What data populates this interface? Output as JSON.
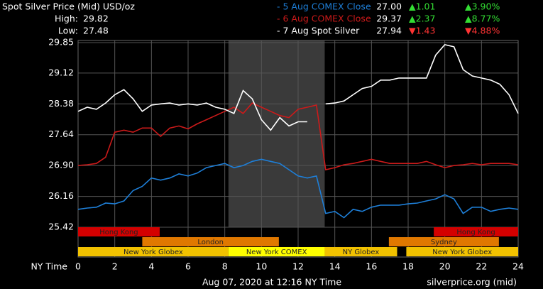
{
  "chart_data": {
    "type": "line",
    "title": "Spot Silver Price (Mid) USD/oz",
    "high_label": "High:",
    "high": "29.82",
    "low_label": "Low:",
    "low": "27.48",
    "x_label": "NY Time",
    "footer_left": "Aug 07, 2020 at 12:16 NY Time",
    "footer_right": "silverprice.org (mid)",
    "xlim": [
      0,
      24
    ],
    "xticks": [
      0,
      2,
      4,
      6,
      8,
      10,
      12,
      14,
      16,
      18,
      20,
      22,
      24
    ],
    "ylim": [
      25.42,
      29.85
    ],
    "yticks": [
      29.85,
      29.12,
      28.38,
      27.64,
      {
        "value": 26.9,
        "label": "26.90"
      },
      26.16,
      25.42
    ],
    "grid": true,
    "x": [
      0,
      0.5,
      1,
      1.5,
      2,
      2.5,
      3,
      3.5,
      4,
      4.5,
      5,
      5.5,
      6,
      6.5,
      7,
      7.5,
      8,
      8.5,
      9,
      9.5,
      10,
      10.5,
      11,
      11.5,
      12,
      12.5,
      13,
      13.5,
      14,
      14.5,
      15,
      15.5,
      16,
      16.5,
      17,
      17.5,
      18,
      18.5,
      19,
      19.5,
      20,
      20.5,
      21,
      21.5,
      22,
      22.5,
      23,
      23.5,
      24
    ],
    "series": [
      {
        "name": "- 5 Aug COMEX Close",
        "color": "#1e7fd8",
        "last": "27.00",
        "change": "▲1.01",
        "change_pct": "▲3.90%",
        "change_color": "#33dd33",
        "values": [
          25.85,
          25.88,
          25.9,
          26.0,
          25.98,
          26.05,
          26.3,
          26.4,
          26.6,
          26.55,
          26.6,
          26.7,
          26.65,
          26.72,
          26.85,
          26.9,
          26.95,
          26.85,
          26.9,
          27.0,
          27.05,
          27.0,
          26.95,
          26.8,
          26.65,
          26.6,
          26.65,
          25.75,
          25.8,
          25.65,
          25.85,
          25.8,
          25.9,
          25.95,
          25.95,
          25.95,
          25.98,
          26.0,
          26.05,
          26.1,
          26.2,
          26.1,
          25.75,
          25.9,
          25.9,
          25.8,
          25.85,
          25.88,
          25.85
        ]
      },
      {
        "name": "- 6 Aug COMEX Close",
        "color": "#cc1a1a",
        "last": "29.37",
        "change": "▲2.37",
        "change_pct": "▲8.77%",
        "change_color": "#33dd33",
        "values": [
          26.9,
          26.92,
          26.95,
          27.1,
          27.7,
          27.75,
          27.7,
          27.8,
          27.8,
          27.6,
          27.8,
          27.85,
          27.78,
          27.9,
          28.0,
          28.1,
          28.2,
          28.3,
          28.15,
          28.4,
          28.3,
          28.2,
          28.1,
          28.05,
          28.25,
          28.3,
          28.35,
          26.8,
          26.85,
          26.92,
          26.95,
          27.0,
          27.05,
          27.0,
          26.95,
          26.95,
          26.95,
          26.95,
          27.0,
          26.92,
          26.85,
          26.9,
          26.92,
          26.95,
          26.92,
          26.95,
          26.95,
          26.95,
          26.92
        ]
      },
      {
        "name": "- 7 Aug Spot Silver",
        "color": "#ffffff",
        "last": "27.94",
        "change": "▼1.43",
        "change_pct": "▼4.88%",
        "change_color": "#ff3333",
        "values": [
          28.2,
          28.3,
          28.25,
          28.4,
          28.6,
          28.72,
          28.5,
          28.2,
          28.35,
          28.38,
          28.4,
          28.35,
          28.38,
          28.35,
          28.4,
          28.3,
          28.25,
          28.15,
          28.7,
          28.5,
          28.0,
          27.75,
          28.05,
          27.85,
          27.95,
          27.95,
          null,
          28.38,
          28.4,
          28.45,
          28.6,
          28.75,
          28.8,
          28.95,
          28.95,
          29.0,
          29.0,
          29.0,
          29.0,
          29.55,
          29.8,
          29.75,
          29.2,
          29.05,
          29.0,
          28.95,
          28.85,
          28.6,
          28.15
        ]
      }
    ],
    "sessions": [
      [
        {
          "label": "Hong Kong",
          "start": 0,
          "end": 4.45,
          "color": "#d40000"
        },
        {
          "label": "Hong Kong",
          "start": 19.4,
          "end": 24,
          "color": "#d40000"
        }
      ],
      [
        {
          "label": "London",
          "start": 3.5,
          "end": 10.95,
          "color": "#e07800"
        },
        {
          "label": "Sydney",
          "start": 16.95,
          "end": 22.95,
          "color": "#e07800"
        }
      ],
      [
        {
          "label": "New York Globex",
          "start": 0,
          "end": 8.2,
          "color": "#f2c200"
        },
        {
          "label": "New York COMEX",
          "start": 8.2,
          "end": 13.45,
          "color": "#ffff00"
        },
        {
          "label": "NY Globex",
          "start": 13.45,
          "end": 17.4,
          "color": "#f2c200"
        },
        {
          "label": "New York Globex",
          "start": 17.9,
          "end": 24,
          "color": "#f2c200"
        }
      ]
    ]
  }
}
